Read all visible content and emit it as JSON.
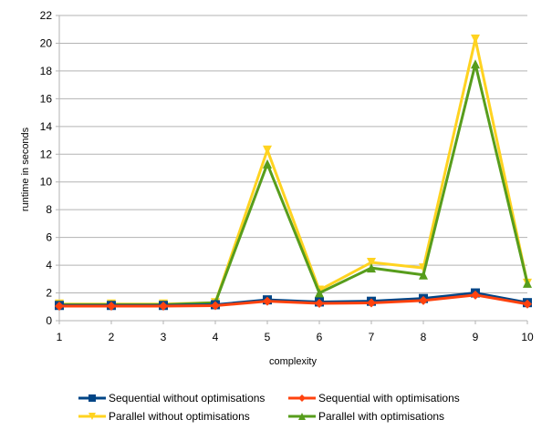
{
  "chart_data": {
    "type": "line",
    "title": "",
    "xlabel": "complexity",
    "ylabel": "runtime in seconds",
    "x": [
      1,
      2,
      3,
      4,
      5,
      6,
      7,
      8,
      9,
      10
    ],
    "x_ticks": [
      "1",
      "2",
      "3",
      "4",
      "5",
      "6",
      "7",
      "8",
      "9",
      "10"
    ],
    "y_ticks": [
      "0",
      "2",
      "4",
      "6",
      "8",
      "10",
      "12",
      "14",
      "16",
      "18",
      "20",
      "22"
    ],
    "ylim": [
      0,
      22
    ],
    "grid": "horizontal",
    "legend_position": "bottom",
    "series": [
      {
        "name": "Sequential without optimisations",
        "color": "#004586",
        "marker": "square",
        "values": [
          1.1,
          1.1,
          1.1,
          1.15,
          1.5,
          1.35,
          1.4,
          1.6,
          2.0,
          1.3
        ]
      },
      {
        "name": "Sequential with optimisations",
        "color": "#ff420e",
        "marker": "diamond",
        "values": [
          1.05,
          1.05,
          1.05,
          1.08,
          1.4,
          1.25,
          1.28,
          1.45,
          1.85,
          1.2
        ]
      },
      {
        "name": "Parallel without optimisations",
        "color": "#ffd320",
        "marker": "triangle-down",
        "values": [
          1.2,
          1.2,
          1.2,
          1.3,
          12.3,
          2.2,
          4.2,
          3.8,
          20.3,
          2.7
        ]
      },
      {
        "name": "Parallel with optimisations",
        "color": "#579d1c",
        "marker": "triangle-up",
        "values": [
          1.15,
          1.15,
          1.15,
          1.3,
          11.3,
          2.0,
          3.8,
          3.3,
          18.5,
          2.7
        ]
      }
    ]
  }
}
